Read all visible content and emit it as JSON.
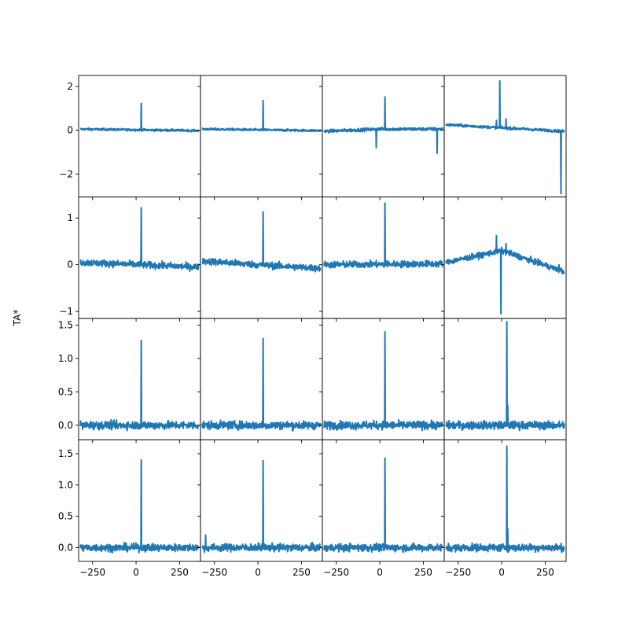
{
  "figure": {
    "ylabel": "TA*",
    "line_color": "#1f77b4"
  },
  "chart_data": {
    "type": "line",
    "layout": "4x4 grid of panels, shared x-axis, shared y-axis per row",
    "x_range": [
      -330,
      370
    ],
    "x_ticks": [
      -250,
      0,
      250
    ],
    "x_tick_labels": [
      "−250",
      "0",
      "250"
    ],
    "rows": [
      {
        "ylim": [
          -3.05,
          2.5
        ],
        "y_ticks": [
          -2,
          0,
          2
        ],
        "y_tick_labels": [
          "−2",
          "0",
          "2"
        ],
        "panels": [
          {
            "noise": 0.04,
            "baseline": [
              [
                -320,
                0.05
              ],
              [
                360,
                -0.02
              ]
            ],
            "spikes": [
              [
                30,
                1.22
              ]
            ]
          },
          {
            "noise": 0.04,
            "baseline": [
              [
                -320,
                0.05
              ],
              [
                360,
                -0.02
              ]
            ],
            "spikes": [
              [
                30,
                1.36
              ]
            ]
          },
          {
            "noise": 0.06,
            "baseline": [
              [
                -320,
                -0.05
              ],
              [
                0,
                0.05
              ],
              [
                360,
                0.05
              ]
            ],
            "spikes": [
              [
                30,
                1.52
              ],
              [
                -20,
                -0.8
              ],
              [
                330,
                -1.05
              ]
            ]
          },
          {
            "noise": 0.05,
            "baseline": [
              [
                -320,
                0.25
              ],
              [
                360,
                -0.05
              ]
            ],
            "spikes": [
              [
                -10,
                2.25
              ],
              [
                -30,
                0.45
              ],
              [
                25,
                0.52
              ],
              [
                340,
                -2.9
              ]
            ]
          }
        ]
      },
      {
        "ylim": [
          -1.15,
          1.45
        ],
        "y_ticks": [
          -1,
          0,
          1
        ],
        "y_tick_labels": [
          "−1",
          "0",
          "1"
        ],
        "panels": [
          {
            "noise": 0.06,
            "baseline": [
              [
                -320,
                0.05
              ],
              [
                360,
                -0.05
              ]
            ],
            "spikes": [
              [
                30,
                1.22
              ]
            ]
          },
          {
            "noise": 0.06,
            "baseline": [
              [
                -320,
                0.08
              ],
              [
                0,
                0.0
              ],
              [
                360,
                -0.08
              ]
            ],
            "spikes": [
              [
                30,
                1.13
              ]
            ]
          },
          {
            "noise": 0.06,
            "baseline": [
              [
                -320,
                0.0
              ],
              [
                360,
                0.02
              ]
            ],
            "spikes": [
              [
                30,
                1.32
              ]
            ]
          },
          {
            "noise": 0.05,
            "baseline": [
              [
                -320,
                0.05
              ],
              [
                0,
                0.3
              ],
              [
                360,
                -0.15
              ]
            ],
            "spikes": [
              [
                -30,
                0.62
              ],
              [
                -5,
                -1.05
              ],
              [
                25,
                0.45
              ],
              [
                330,
                0.0
              ]
            ]
          }
        ]
      },
      {
        "ylim": [
          -0.22,
          1.6
        ],
        "y_ticks": [
          0,
          0.5,
          1,
          1.5
        ],
        "y_tick_labels": [
          "0.0",
          "0.5",
          "1.0",
          "1.5"
        ],
        "panels": [
          {
            "noise": 0.05,
            "baseline": [
              [
                -320,
                0.0
              ],
              [
                360,
                0.0
              ]
            ],
            "spikes": [
              [
                30,
                1.27
              ]
            ]
          },
          {
            "noise": 0.05,
            "baseline": [
              [
                -320,
                0.0
              ],
              [
                360,
                0.0
              ]
            ],
            "spikes": [
              [
                30,
                1.3
              ]
            ]
          },
          {
            "noise": 0.05,
            "baseline": [
              [
                -320,
                0.0
              ],
              [
                360,
                0.0
              ]
            ],
            "spikes": [
              [
                30,
                1.4
              ]
            ]
          },
          {
            "noise": 0.05,
            "baseline": [
              [
                -320,
                0.0
              ],
              [
                360,
                0.0
              ]
            ],
            "spikes": [
              [
                30,
                1.55
              ],
              [
                35,
                0.3
              ]
            ]
          }
        ]
      },
      {
        "ylim": [
          -0.22,
          1.72
        ],
        "y_ticks": [
          0,
          0.5,
          1,
          1.5
        ],
        "y_tick_labels": [
          "0.0",
          "0.5",
          "1.0",
          "1.5"
        ],
        "panels": [
          {
            "noise": 0.05,
            "baseline": [
              [
                -320,
                0.0
              ],
              [
                360,
                0.0
              ]
            ],
            "spikes": [
              [
                30,
                1.4
              ]
            ]
          },
          {
            "noise": 0.05,
            "baseline": [
              [
                -320,
                0.0
              ],
              [
                360,
                0.0
              ]
            ],
            "spikes": [
              [
                30,
                1.39
              ]
            ],
            "extra": [
              [
                -300,
                0.2
              ]
            ]
          },
          {
            "noise": 0.05,
            "baseline": [
              [
                -320,
                0.0
              ],
              [
                360,
                0.0
              ]
            ],
            "spikes": [
              [
                30,
                1.43
              ]
            ]
          },
          {
            "noise": 0.05,
            "baseline": [
              [
                -320,
                0.0
              ],
              [
                360,
                0.0
              ]
            ],
            "spikes": [
              [
                30,
                1.62
              ],
              [
                35,
                0.3
              ]
            ]
          }
        ]
      }
    ]
  }
}
